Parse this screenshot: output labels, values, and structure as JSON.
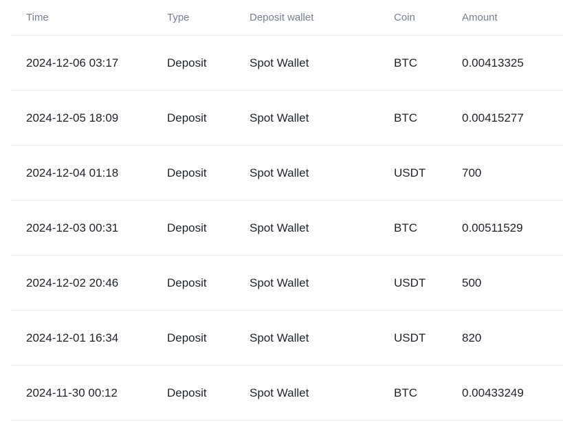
{
  "table": {
    "columns": [
      {
        "key": "time",
        "label": "Time"
      },
      {
        "key": "type",
        "label": "Type"
      },
      {
        "key": "wallet",
        "label": "Deposit wallet"
      },
      {
        "key": "coin",
        "label": "Coin"
      },
      {
        "key": "amount",
        "label": "Amount"
      }
    ],
    "rows": [
      {
        "time": "2024-12-06 03:17",
        "type": "Deposit",
        "wallet": "Spot Wallet",
        "coin": "BTC",
        "amount": "0.00413325"
      },
      {
        "time": "2024-12-05 18:09",
        "type": "Deposit",
        "wallet": "Spot Wallet",
        "coin": "BTC",
        "amount": "0.00415277"
      },
      {
        "time": "2024-12-04 01:18",
        "type": "Deposit",
        "wallet": "Spot Wallet",
        "coin": "USDT",
        "amount": "700"
      },
      {
        "time": "2024-12-03 00:31",
        "type": "Deposit",
        "wallet": "Spot Wallet",
        "coin": "BTC",
        "amount": "0.00511529"
      },
      {
        "time": "2024-12-02 20:46",
        "type": "Deposit",
        "wallet": "Spot Wallet",
        "coin": "USDT",
        "amount": "500"
      },
      {
        "time": "2024-12-01 16:34",
        "type": "Deposit",
        "wallet": "Spot Wallet",
        "coin": "USDT",
        "amount": "820"
      },
      {
        "time": "2024-11-30 00:12",
        "type": "Deposit",
        "wallet": "Spot Wallet",
        "coin": "BTC",
        "amount": "0.00433249"
      }
    ]
  },
  "colors": {
    "header_text": "#76808e",
    "body_text": "#1e2329",
    "divider": "#eaecef",
    "background": "#ffffff"
  }
}
